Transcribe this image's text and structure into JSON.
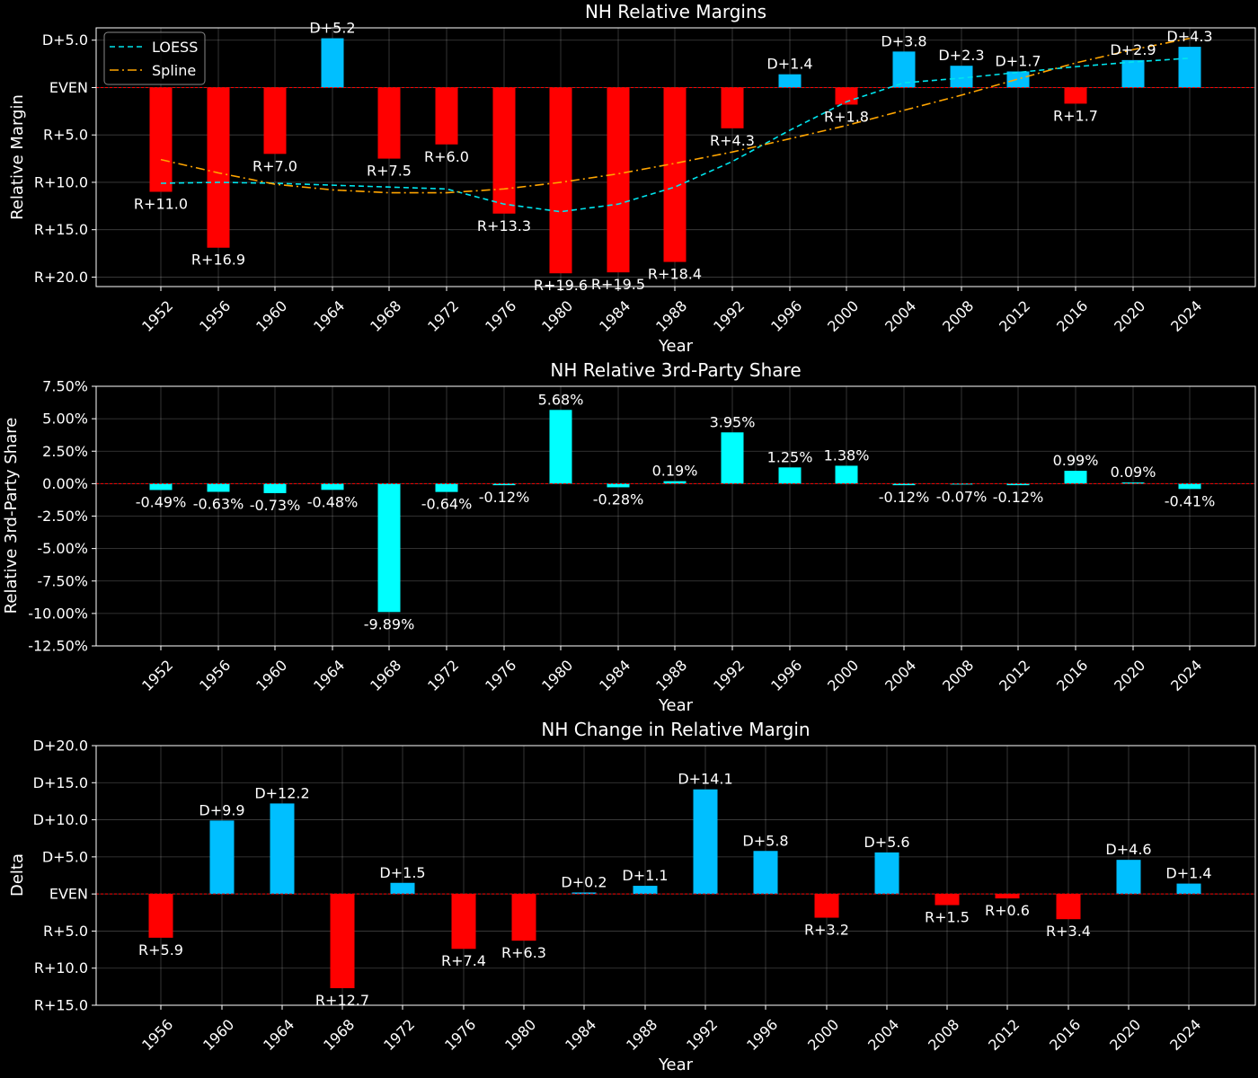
{
  "charts": [
    {
      "id": "margins",
      "title": "NH Relative Margins",
      "xlabel": "Year",
      "ylabel": "Relative Margin",
      "yticks": [
        "D+5.0",
        "EVEN",
        "R+5.0",
        "R+10.0",
        "R+15.0",
        "R+20.0"
      ],
      "xticks": [
        "1952",
        "1956",
        "1960",
        "1964",
        "1968",
        "1972",
        "1976",
        "1980",
        "1984",
        "1988",
        "1992",
        "1996",
        "2000",
        "2004",
        "2008",
        "2012",
        "2016",
        "2020",
        "2024"
      ],
      "bar_labels": [
        "R+11.0",
        "R+16.9",
        "R+7.0",
        "D+5.2",
        "R+7.5",
        "R+6.0",
        "R+13.3",
        "R+19.6",
        "R+19.5",
        "R+18.4",
        "R+4.3",
        "D+1.4",
        "R+1.8",
        "D+3.8",
        "D+2.3",
        "D+1.7",
        "R+1.7",
        "D+2.9",
        "D+4.3"
      ],
      "legend": [
        {
          "name": "LOESS",
          "color": "#00e5ee",
          "dash": "dashed"
        },
        {
          "name": "Spline",
          "color": "#ffa500",
          "dash": "dashdot"
        }
      ]
    },
    {
      "id": "thirdparty",
      "title": "NH Relative 3rd-Party Share",
      "xlabel": "Year",
      "ylabel": "Relative 3rd-Party Share",
      "yticks": [
        "7.50%",
        "5.00%",
        "2.50%",
        "0.00%",
        "-2.50%",
        "-5.00%",
        "-7.50%",
        "-10.00%",
        "-12.50%"
      ],
      "xticks": [
        "1952",
        "1956",
        "1960",
        "1964",
        "1968",
        "1972",
        "1976",
        "1980",
        "1984",
        "1988",
        "1992",
        "1996",
        "2000",
        "2004",
        "2008",
        "2012",
        "2016",
        "2020",
        "2024"
      ],
      "bar_labels": [
        "-0.49%",
        "-0.63%",
        "-0.73%",
        "-0.48%",
        "-9.89%",
        "-0.64%",
        "-0.12%",
        "5.68%",
        "-0.28%",
        "0.19%",
        "3.95%",
        "1.25%",
        "1.38%",
        "-0.12%",
        "-0.07%",
        "-0.12%",
        "0.99%",
        "0.09%",
        "-0.41%"
      ]
    },
    {
      "id": "change",
      "title": "NH Change in Relative Margin",
      "xlabel": "Year",
      "ylabel": "Delta",
      "yticks": [
        "D+20.0",
        "D+15.0",
        "D+10.0",
        "D+5.0",
        "EVEN",
        "R+5.0",
        "R+10.0",
        "R+15.0"
      ],
      "xticks": [
        "1956",
        "1960",
        "1964",
        "1968",
        "1972",
        "1976",
        "1980",
        "1984",
        "1988",
        "1992",
        "1996",
        "2000",
        "2004",
        "2008",
        "2012",
        "2016",
        "2020",
        "2024"
      ],
      "bar_labels": [
        "R+5.9",
        "D+9.9",
        "D+12.2",
        "R+12.7",
        "D+1.5",
        "R+7.4",
        "R+6.3",
        "D+0.2",
        "D+1.1",
        "D+14.1",
        "D+5.8",
        "R+3.2",
        "D+5.6",
        "R+1.5",
        "R+0.6",
        "R+3.4",
        "D+4.6",
        "D+1.4"
      ]
    }
  ],
  "chart_data": [
    {
      "type": "bar",
      "title": "NH Relative Margins",
      "xlabel": "Year",
      "ylabel": "Relative Margin",
      "categories": [
        1952,
        1956,
        1960,
        1964,
        1968,
        1972,
        1976,
        1980,
        1984,
        1988,
        1992,
        1996,
        2000,
        2004,
        2008,
        2012,
        2016,
        2020,
        2024
      ],
      "values": [
        -11.0,
        -16.9,
        -7.0,
        5.2,
        -7.5,
        -6.0,
        -13.3,
        -19.6,
        -19.5,
        -18.4,
        -4.3,
        1.4,
        -1.8,
        3.8,
        2.3,
        1.7,
        -1.7,
        2.9,
        4.3
      ],
      "ylim": [
        -21,
        6.3
      ],
      "series": [
        {
          "name": "LOESS",
          "x": [
            1952,
            1956,
            1960,
            1964,
            1968,
            1972,
            1976,
            1980,
            1984,
            1988,
            1992,
            1996,
            2000,
            2004,
            2008,
            2012,
            2016,
            2020,
            2024
          ],
          "values": [
            -10.1,
            -10.0,
            -10.1,
            -10.3,
            -10.5,
            -10.7,
            -12.3,
            -13.1,
            -12.3,
            -10.5,
            -7.8,
            -4.5,
            -1.5,
            0.5,
            1.0,
            1.6,
            2.2,
            2.7,
            3.1
          ]
        },
        {
          "name": "Spline",
          "x": [
            1952,
            1956,
            1960,
            1964,
            1968,
            1972,
            1976,
            1980,
            1984,
            1988,
            1992,
            1996,
            2000,
            2004,
            2008,
            2012,
            2016,
            2020,
            2024
          ],
          "values": [
            -7.6,
            -9.0,
            -10.2,
            -10.8,
            -11.1,
            -11.1,
            -10.7,
            -10.0,
            -9.1,
            -8.0,
            -6.8,
            -5.4,
            -4.0,
            -2.4,
            -0.8,
            0.9,
            2.6,
            4.0,
            5.2
          ]
        }
      ],
      "grid": true,
      "legend_position": "top-left",
      "colors": {
        "democratic": "#00bfff",
        "republican": "#ff0000",
        "zero_line": "#ff0000"
      }
    },
    {
      "type": "bar",
      "title": "NH Relative 3rd-Party Share",
      "xlabel": "Year",
      "ylabel": "Relative 3rd-Party Share",
      "categories": [
        1952,
        1956,
        1960,
        1964,
        1968,
        1972,
        1976,
        1980,
        1984,
        1988,
        1992,
        1996,
        2000,
        2004,
        2008,
        2012,
        2016,
        2020,
        2024
      ],
      "values": [
        -0.49,
        -0.63,
        -0.73,
        -0.48,
        -9.89,
        -0.64,
        -0.12,
        5.68,
        -0.28,
        0.19,
        3.95,
        1.25,
        1.38,
        -0.12,
        -0.07,
        -0.12,
        0.99,
        0.09,
        -0.41
      ],
      "ylim": [
        -12.5,
        7.5
      ],
      "grid": true,
      "colors": {
        "bar": "#00ffff",
        "zero_line": "#ff0000"
      }
    },
    {
      "type": "bar",
      "title": "NH Change in Relative Margin",
      "xlabel": "Year",
      "ylabel": "Delta",
      "categories": [
        1956,
        1960,
        1964,
        1968,
        1972,
        1976,
        1980,
        1984,
        1988,
        1992,
        1996,
        2000,
        2004,
        2008,
        2012,
        2016,
        2020,
        2024
      ],
      "values": [
        -5.9,
        9.9,
        12.2,
        -12.7,
        1.5,
        -7.4,
        -6.3,
        0.2,
        1.1,
        14.1,
        5.8,
        -3.2,
        5.6,
        -1.5,
        -0.6,
        -3.4,
        4.6,
        1.4
      ],
      "ylim": [
        -15,
        20
      ],
      "grid": true,
      "colors": {
        "democratic": "#00bfff",
        "republican": "#ff0000",
        "zero_line": "#ff0000"
      }
    }
  ]
}
